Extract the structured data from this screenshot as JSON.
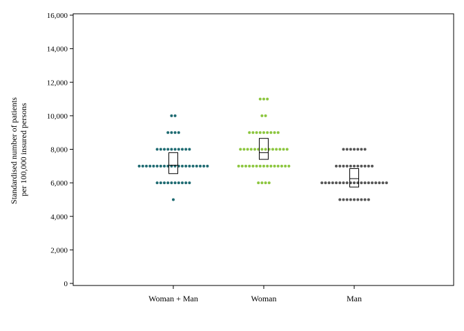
{
  "chart_data": {
    "type": "scatter",
    "subtype": "dot-plot-with-interquartile-box",
    "title": "",
    "ylabel_lines": [
      "Standardised number of patients",
      "per 100,000 insured persons"
    ],
    "xlabel": "",
    "ylim": [
      0,
      16000
    ],
    "yticks": [
      0,
      2000,
      4000,
      6000,
      8000,
      10000,
      12000,
      14000,
      16000
    ],
    "ytick_labels": [
      "0",
      "2,000",
      "4,000",
      "6,000",
      "8,000",
      "10,000",
      "12,000",
      "14,000",
      "16,000"
    ],
    "grid": false,
    "categories": [
      "Woman + Man",
      "Woman",
      "Man"
    ],
    "series": [
      {
        "category": "Woman + Man",
        "color": "#1f6b72",
        "points": [
          {
            "value": 5000,
            "count": 1
          },
          {
            "value": 6000,
            "count": 10
          },
          {
            "value": 7000,
            "count": 20
          },
          {
            "value": 8000,
            "count": 10
          },
          {
            "value": 9000,
            "count": 4
          },
          {
            "value": 10000,
            "count": 2
          }
        ],
        "box": {
          "q1": 6550,
          "median": 7050,
          "q3": 7800
        }
      },
      {
        "category": "Woman",
        "color": "#8cc63f",
        "points": [
          {
            "value": 6000,
            "count": 4
          },
          {
            "value": 7000,
            "count": 15
          },
          {
            "value": 8000,
            "count": 14
          },
          {
            "value": 9000,
            "count": 9
          },
          {
            "value": 10000,
            "count": 2
          },
          {
            "value": 11000,
            "count": 3
          }
        ],
        "box": {
          "q1": 7400,
          "median": 7800,
          "q3": 8650
        }
      },
      {
        "category": "Man",
        "color": "#555555",
        "points": [
          {
            "value": 5000,
            "count": 9
          },
          {
            "value": 6000,
            "count": 19
          },
          {
            "value": 7000,
            "count": 11
          },
          {
            "value": 8000,
            "count": 7
          }
        ],
        "box": {
          "q1": 5750,
          "median": 6250,
          "q3": 6850
        }
      }
    ]
  }
}
